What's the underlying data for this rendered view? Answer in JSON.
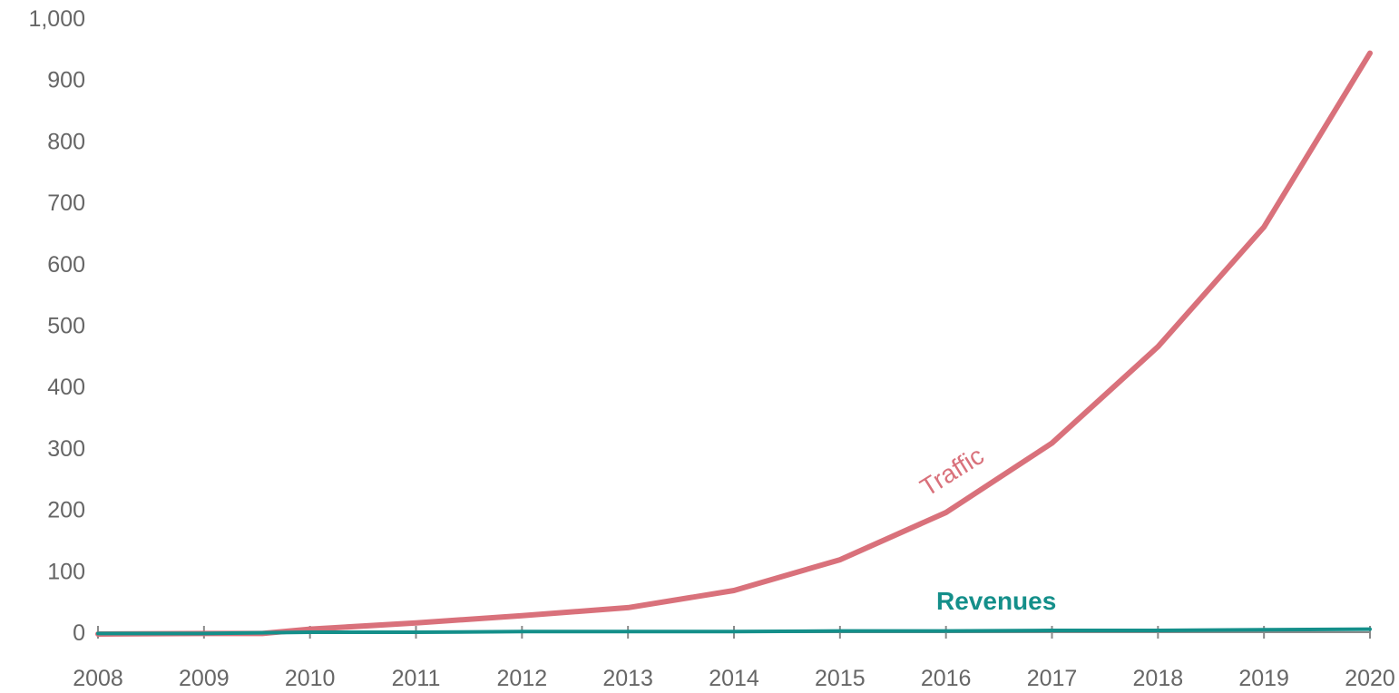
{
  "chart_data": {
    "type": "line",
    "title": "",
    "xlabel": "",
    "ylabel": "",
    "ylim": [
      0,
      1000
    ],
    "y_ticks": [
      "0",
      "100",
      "200",
      "300",
      "400",
      "500",
      "600",
      "700",
      "800",
      "900",
      "1,000"
    ],
    "x_ticks": [
      "2008",
      "2009",
      "2010",
      "2011",
      "2012",
      "2013",
      "2014",
      "2015",
      "2016",
      "2017",
      "2018",
      "2019",
      "2020"
    ],
    "grid": false,
    "legend": "none (series labeled inline)",
    "series": [
      {
        "name": "Traffic",
        "color": "#d9717b",
        "x": [
          2008,
          2009,
          2009.55,
          2010,
          2011,
          2012,
          2013,
          2014,
          2015,
          2016,
          2017,
          2018,
          2019,
          2020
        ],
        "values": [
          -3,
          -2,
          -2,
          5,
          15,
          27,
          40,
          68,
          118,
          195,
          308,
          465,
          660,
          943
        ]
      },
      {
        "name": "Revenues",
        "color": "#148f8a",
        "x": [
          2008,
          2009,
          2010,
          2011,
          2012,
          2013,
          2014,
          2015,
          2016,
          2017,
          2018,
          2019,
          2020
        ],
        "values": [
          -2,
          -2,
          0,
          0,
          1,
          1,
          1,
          2,
          2,
          3,
          3,
          4,
          5
        ]
      }
    ]
  }
}
